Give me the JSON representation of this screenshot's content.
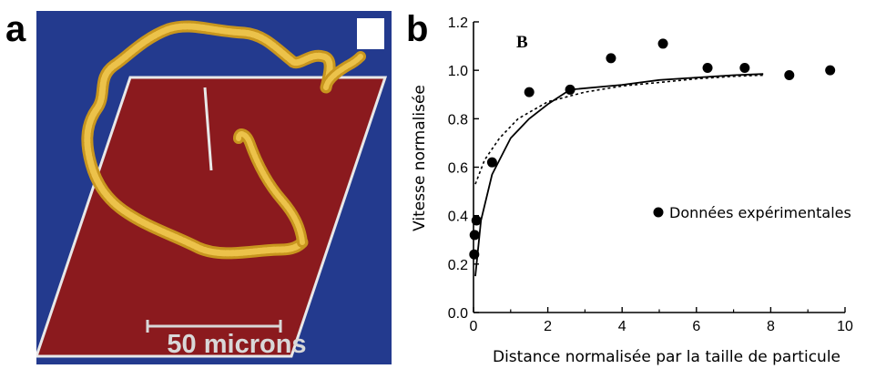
{
  "panel_a": {
    "letter": "a",
    "scale_bar_label": "50 microns",
    "colors": {
      "background": "#233a8e",
      "plane": "#8b1a1e",
      "filament": "#e0b33a",
      "plane_border": "#e8e8e8"
    }
  },
  "panel_b": {
    "letter": "b",
    "inset_letter": "B"
  },
  "chart_data": {
    "type": "scatter",
    "title": "",
    "xlabel": "Distance normalisée par la taille de particule",
    "ylabel": "Vitesse normalisée",
    "xlim": [
      0,
      10
    ],
    "ylim": [
      0,
      1.2
    ],
    "x_ticks": [
      "0",
      "2",
      "4",
      "6",
      "8",
      "10"
    ],
    "y_ticks": [
      "0.0",
      "0.2",
      "0.4",
      "0.6",
      "0.8",
      "1.0",
      "1.2"
    ],
    "grid": false,
    "legend_position": "right-middle",
    "series": [
      {
        "name": "Données expérimentales",
        "kind": "points",
        "points": [
          {
            "x": 0.02,
            "y": 0.24
          },
          {
            "x": 0.03,
            "y": 0.32
          },
          {
            "x": 0.08,
            "y": 0.38
          },
          {
            "x": 0.5,
            "y": 0.62
          },
          {
            "x": 1.5,
            "y": 0.91
          },
          {
            "x": 2.6,
            "y": 0.92
          },
          {
            "x": 3.7,
            "y": 1.05
          },
          {
            "x": 5.1,
            "y": 1.11
          },
          {
            "x": 6.3,
            "y": 1.01
          },
          {
            "x": 7.3,
            "y": 1.01
          },
          {
            "x": 8.5,
            "y": 0.98
          },
          {
            "x": 9.6,
            "y": 1.0
          }
        ]
      },
      {
        "kind": "solid-line",
        "points": [
          {
            "x": 0.05,
            "y": 0.15
          },
          {
            "x": 0.2,
            "y": 0.38
          },
          {
            "x": 0.5,
            "y": 0.57
          },
          {
            "x": 1.0,
            "y": 0.72
          },
          {
            "x": 1.5,
            "y": 0.8
          },
          {
            "x": 2.0,
            "y": 0.86
          },
          {
            "x": 2.6,
            "y": 0.92
          },
          {
            "x": 4.0,
            "y": 0.94
          },
          {
            "x": 5.0,
            "y": 0.96
          },
          {
            "x": 6.0,
            "y": 0.97
          },
          {
            "x": 7.0,
            "y": 0.98
          },
          {
            "x": 7.8,
            "y": 0.985
          }
        ]
      },
      {
        "kind": "dotted-line",
        "points": [
          {
            "x": 0.05,
            "y": 0.53
          },
          {
            "x": 0.3,
            "y": 0.63
          },
          {
            "x": 0.7,
            "y": 0.72
          },
          {
            "x": 1.2,
            "y": 0.8
          },
          {
            "x": 2.0,
            "y": 0.87
          },
          {
            "x": 3.0,
            "y": 0.91
          },
          {
            "x": 4.0,
            "y": 0.935
          },
          {
            "x": 5.0,
            "y": 0.95
          },
          {
            "x": 6.0,
            "y": 0.965
          },
          {
            "x": 7.0,
            "y": 0.975
          },
          {
            "x": 7.8,
            "y": 0.98
          }
        ]
      }
    ]
  }
}
